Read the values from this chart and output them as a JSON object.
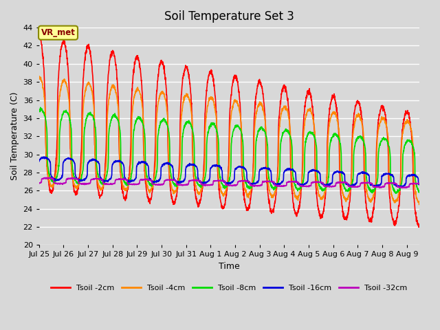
{
  "title": "Soil Temperature Set 3",
  "xlabel": "Time",
  "ylabel": "Soil Temperature (C)",
  "ylim": [
    20,
    44
  ],
  "yticks": [
    20,
    22,
    24,
    26,
    28,
    30,
    32,
    34,
    36,
    38,
    40,
    42,
    44
  ],
  "bg_color": "#d8d8d8",
  "plot_bg_color": "#d8d8d8",
  "grid_color": "#ffffff",
  "annotation_text": "VR_met",
  "annotation_bg": "#ffff99",
  "annotation_border": "#888800",
  "legend_entries": [
    "Tsoil -2cm",
    "Tsoil -4cm",
    "Tsoil -8cm",
    "Tsoil -16cm",
    "Tsoil -32cm"
  ],
  "line_colors": [
    "#ff0000",
    "#ff8800",
    "#00dd00",
    "#0000dd",
    "#bb00bb"
  ],
  "line_widths": [
    1.2,
    1.2,
    1.2,
    1.2,
    1.2
  ],
  "n_days": 15.5,
  "samples_per_day": 144,
  "xtick_labels": [
    "Jul 25",
    "Jul 26",
    "Jul 27",
    "Jul 28",
    "Jul 29",
    "Jul 30",
    "Jul 31",
    "Aug 1",
    "Aug 2",
    "Aug 3",
    "Aug 4",
    "Aug 5",
    "Aug 6",
    "Aug 7",
    "Aug 8",
    "Aug 9"
  ],
  "title_fontsize": 12,
  "axis_label_fontsize": 9,
  "tick_fontsize": 8,
  "figwidth": 6.4,
  "figheight": 4.8,
  "dpi": 100
}
